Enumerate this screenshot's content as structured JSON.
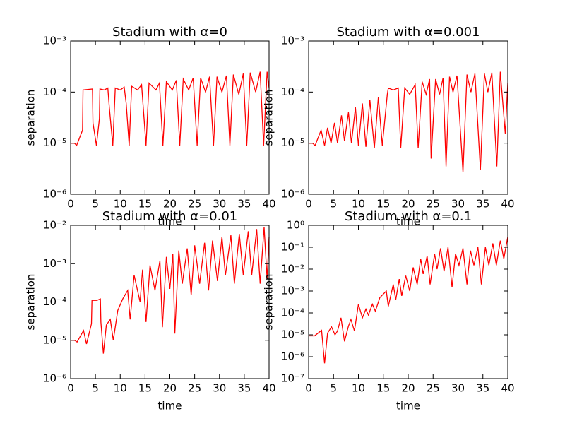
{
  "chart_data": [
    {
      "type": "line",
      "title": "Stadium with α=0",
      "xlabel": "time",
      "ylabel": "separation",
      "log_y": true,
      "color": "#ff0000",
      "xlim": [
        0,
        40
      ],
      "xticks": [
        0,
        5,
        10,
        15,
        20,
        25,
        30,
        35,
        40
      ],
      "ylim": [
        1e-06,
        0.001
      ],
      "yticks": [
        {
          "value": 1e-06,
          "label": "10⁻⁶"
        },
        {
          "value": 1e-05,
          "label": "10⁻⁵"
        },
        {
          "value": 0.0001,
          "label": "10⁻⁴"
        },
        {
          "value": 0.001,
          "label": "10⁻³"
        }
      ],
      "x": [
        0,
        0.8,
        1.2,
        2.4,
        2.5,
        4.4,
        4.5,
        5.2,
        5.8,
        5.9,
        6.8,
        7.5,
        7.8,
        8.5,
        9,
        10,
        10.8,
        11.2,
        11.8,
        12.3,
        13.5,
        14.3,
        15.2,
        15.8,
        17.2,
        17.9,
        18.6,
        19.3,
        20.5,
        21.3,
        22,
        22.7,
        23.8,
        24.7,
        25.5,
        26.2,
        27.2,
        28,
        28.8,
        29.5,
        30.5,
        31.4,
        32.1,
        32.8,
        33.9,
        34.8,
        35.5,
        36.2,
        37.3,
        38.2,
        38.9,
        39.6,
        40
      ],
      "values": [
        1e-05,
        1e-05,
        9e-06,
        1.8e-05,
        0.00011,
        0.000115,
        2.5e-05,
        9e-06,
        3e-05,
        0.000115,
        0.00011,
        0.00012,
        5e-05,
        9e-06,
        0.00012,
        0.00011,
        0.000125,
        6e-05,
        9e-06,
        0.00013,
        0.00011,
        0.00014,
        9e-06,
        0.00015,
        0.00011,
        0.00015,
        9e-06,
        0.00016,
        0.00011,
        0.00017,
        9e-06,
        0.00018,
        0.00011,
        0.00019,
        9e-06,
        0.00019,
        0.0001,
        0.0002,
        9e-06,
        0.0002,
        0.0001,
        0.00021,
        9e-06,
        0.00022,
        9e-05,
        0.00023,
        9e-06,
        0.00024,
        0.0001,
        0.00025,
        9e-06,
        0.00025,
        0.00012
      ]
    },
    {
      "type": "line",
      "title": "Stadium with α=0.001",
      "xlabel": "time",
      "ylabel": "separation",
      "log_y": true,
      "color": "#ff0000",
      "xlim": [
        0,
        40
      ],
      "xticks": [
        0,
        5,
        10,
        15,
        20,
        25,
        30,
        35,
        40
      ],
      "ylim": [
        1e-06,
        0.001
      ],
      "yticks": [
        {
          "value": 1e-06,
          "label": "10⁻⁶"
        },
        {
          "value": 1e-05,
          "label": "10⁻⁵"
        },
        {
          "value": 0.0001,
          "label": "10⁻⁴"
        },
        {
          "value": 0.001,
          "label": "10⁻³"
        }
      ],
      "x": [
        0,
        0.8,
        1.3,
        2.5,
        3.2,
        3.8,
        4.5,
        5.2,
        5.8,
        6.6,
        7.2,
        8,
        8.6,
        9.4,
        10,
        10.8,
        11.5,
        12.3,
        13.2,
        14,
        14.8,
        15.8,
        16,
        17,
        18,
        18.5,
        19.3,
        20.3,
        21.4,
        22,
        22.8,
        23.6,
        24.3,
        24.6,
        25.5,
        26.3,
        27,
        27.6,
        28.3,
        29,
        29.8,
        31,
        31.8,
        32.6,
        33.4,
        34.5,
        35.3,
        36,
        36.8,
        37.8,
        38.5,
        39.5,
        40
      ],
      "values": [
        1e-05,
        1e-05,
        9e-06,
        1.8e-05,
        9e-06,
        2e-05,
        1e-05,
        2.5e-05,
        1e-05,
        3.5e-05,
        1.1e-05,
        4e-05,
        1e-05,
        5e-05,
        9e-06,
        6e-05,
        8.5e-06,
        7e-05,
        8e-06,
        8e-05,
        9e-06,
        9e-05,
        0.00012,
        0.00011,
        0.00012,
        8e-06,
        0.00012,
        9e-05,
        0.00014,
        8e-06,
        0.00016,
        9e-05,
        0.00018,
        5e-06,
        0.00018,
        9e-05,
        0.00019,
        3.5e-06,
        0.0002,
        0.0001,
        0.00021,
        2.7e-06,
        0.00022,
        0.0001,
        0.00023,
        3e-06,
        0.00023,
        0.0001,
        0.00024,
        3.5e-06,
        0.00025,
        1.5e-05,
        0.00015
      ]
    },
    {
      "type": "line",
      "title": "Stadium with α=0.01",
      "xlabel": "time",
      "ylabel": "separation",
      "log_y": true,
      "color": "#ff0000",
      "xlim": [
        0,
        40
      ],
      "xticks": [
        0,
        5,
        10,
        15,
        20,
        25,
        30,
        35,
        40
      ],
      "ylim": [
        1e-06,
        0.01
      ],
      "yticks": [
        {
          "value": 1e-06,
          "label": "10⁻⁶"
        },
        {
          "value": 1e-05,
          "label": "10⁻⁵"
        },
        {
          "value": 0.0001,
          "label": "10⁻⁴"
        },
        {
          "value": 0.001,
          "label": "10⁻³"
        },
        {
          "value": 0.01,
          "label": "10⁻²"
        }
      ],
      "x": [
        0,
        0.8,
        1.3,
        2.6,
        3.2,
        4.2,
        4.3,
        5.3,
        6,
        6.1,
        6.6,
        7.2,
        8,
        8.6,
        9.5,
        10.5,
        11.5,
        12,
        12.8,
        14,
        14.5,
        15.2,
        16,
        17,
        18,
        18.5,
        19.3,
        20,
        20.6,
        21,
        21.8,
        22.5,
        23.5,
        24.3,
        25,
        26,
        27,
        27.8,
        28.6,
        29.6,
        30.5,
        31.2,
        32.3,
        33,
        34,
        34.8,
        35.8,
        36.5,
        37.5,
        38.2,
        39,
        39.6,
        40
      ],
      "values": [
        1e-05,
        1e-05,
        9e-06,
        1.8e-05,
        8e-06,
        2.7e-05,
        0.00011,
        0.00011,
        0.00012,
        3e-05,
        4.5e-06,
        2.5e-05,
        3.5e-05,
        1e-05,
        6e-05,
        0.00012,
        0.0002,
        3.5e-05,
        0.0005,
        0.0001,
        0.0007,
        3e-05,
        0.0009,
        0.0002,
        0.0012,
        2.2e-05,
        0.0015,
        0.00022,
        0.0018,
        1.5e-05,
        0.0022,
        0.0003,
        0.0025,
        0.00015,
        0.003,
        0.0003,
        0.0035,
        0.0002,
        0.004,
        0.00035,
        0.005,
        0.0005,
        0.0055,
        0.0003,
        0.006,
        0.0005,
        0.007,
        0.0005,
        0.008,
        0.0003,
        0.009,
        0.0004,
        0.005
      ]
    },
    {
      "type": "line",
      "title": "Stadium with α=0.1",
      "xlabel": "time",
      "ylabel": "separation",
      "log_y": true,
      "color": "#ff0000",
      "xlim": [
        0,
        40
      ],
      "xticks": [
        0,
        5,
        10,
        15,
        20,
        25,
        30,
        35,
        40
      ],
      "ylim": [
        1e-07,
        1
      ],
      "yticks": [
        {
          "value": 1e-07,
          "label": "10⁻⁷"
        },
        {
          "value": 1e-06,
          "label": "10⁻⁶"
        },
        {
          "value": 1e-05,
          "label": "10⁻⁵"
        },
        {
          "value": 0.0001,
          "label": "10⁻⁴"
        },
        {
          "value": 0.001,
          "label": "10⁻³"
        },
        {
          "value": 0.01,
          "label": "10⁻²"
        },
        {
          "value": 0.1,
          "label": "10⁻¹"
        },
        {
          "value": 1,
          "label": "10⁰"
        }
      ],
      "x": [
        0,
        1.2,
        2.6,
        3.2,
        3.8,
        4.6,
        5.3,
        5.8,
        6.5,
        7.2,
        8,
        8.5,
        9.2,
        10,
        10.8,
        11.5,
        12,
        12.8,
        13.4,
        14.3,
        15.6,
        16,
        17,
        17.5,
        18.2,
        18.7,
        19.5,
        20.3,
        21,
        21.8,
        22.5,
        23,
        23.8,
        24.4,
        25.3,
        25.8,
        26.5,
        27.2,
        28,
        28.8,
        29.5,
        30.2,
        31,
        31.8,
        32.5,
        33.2,
        34,
        34.7,
        35.5,
        36.2,
        37,
        37.7,
        38.5,
        39.2,
        40
      ],
      "values": [
        9e-06,
        9e-06,
        1.6e-05,
        5e-07,
        1.2e-05,
        2.3e-05,
        1e-05,
        1.5e-05,
        6e-05,
        5e-06,
        2.5e-05,
        5e-05,
        1.5e-05,
        0.00025,
        6e-05,
        0.00015,
        8e-05,
        0.00025,
        0.00012,
        0.0005,
        0.001,
        0.0002,
        0.002,
        0.0004,
        0.0035,
        0.0006,
        0.005,
        0.001,
        0.012,
        0.002,
        0.03,
        0.006,
        0.04,
        0.002,
        0.05,
        0.01,
        0.09,
        0.008,
        0.1,
        0.0015,
        0.05,
        0.015,
        0.09,
        0.002,
        0.07,
        0.015,
        0.1,
        0.002,
        0.1,
        0.015,
        0.15,
        0.015,
        0.2,
        0.03,
        0.3
      ]
    }
  ]
}
